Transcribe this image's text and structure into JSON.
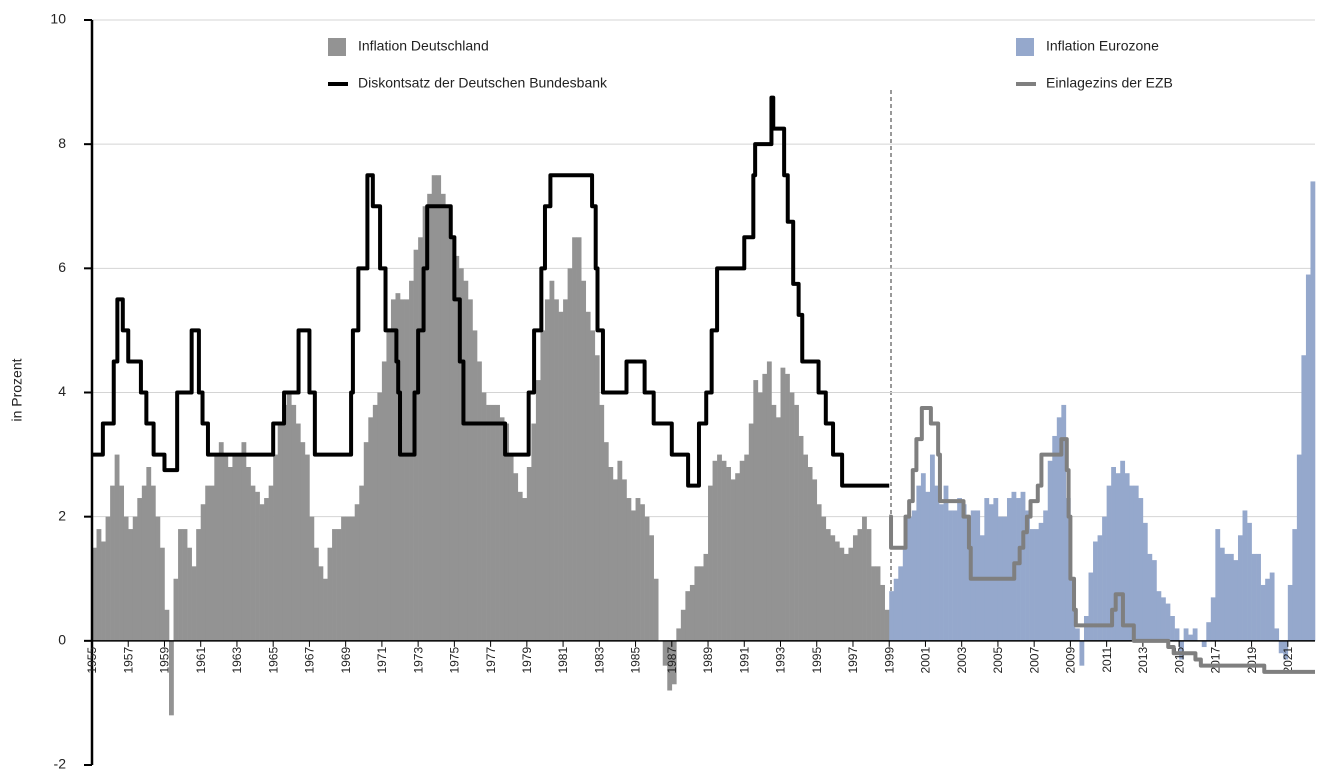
{
  "chart_data": {
    "type": "combo",
    "y_label": "in Prozent",
    "xlim": [
      1955,
      2022.5
    ],
    "xticks": [
      1955,
      1957,
      1959,
      1961,
      1963,
      1965,
      1967,
      1969,
      1971,
      1973,
      1975,
      1977,
      1979,
      1981,
      1983,
      1985,
      1987,
      1989,
      1991,
      1993,
      1995,
      1997,
      1999,
      2001,
      2003,
      2005,
      2007,
      2009,
      2011,
      2013,
      2015,
      2017,
      2019,
      2021
    ],
    "ylim": [
      -2,
      10
    ],
    "yticks": [
      -2,
      0,
      2,
      4,
      6,
      8,
      10
    ],
    "grid": true,
    "series": [
      {
        "name": "Inflation Deutschland",
        "type": "bar",
        "color": "#939393",
        "x": [
          1955,
          1955.25,
          1955.5,
          1955.75,
          1956,
          1956.25,
          1956.5,
          1956.75,
          1957,
          1957.25,
          1957.5,
          1957.75,
          1958,
          1958.25,
          1958.5,
          1958.75,
          1959,
          1959.25,
          1959.5,
          1959.75,
          1960,
          1960.25,
          1960.5,
          1960.75,
          1961,
          1961.25,
          1961.5,
          1961.75,
          1962,
          1962.25,
          1962.5,
          1962.75,
          1963,
          1963.25,
          1963.5,
          1963.75,
          1964,
          1964.25,
          1964.5,
          1964.75,
          1965,
          1965.25,
          1965.5,
          1965.75,
          1966,
          1966.25,
          1966.5,
          1966.75,
          1967,
          1967.25,
          1967.5,
          1967.75,
          1968,
          1968.25,
          1968.5,
          1968.75,
          1969,
          1969.25,
          1969.5,
          1969.75,
          1970,
          1970.25,
          1970.5,
          1970.75,
          1971,
          1971.25,
          1971.5,
          1971.75,
          1972,
          1972.25,
          1972.5,
          1972.75,
          1973,
          1973.25,
          1973.5,
          1973.75,
          1974,
          1974.25,
          1974.5,
          1974.75,
          1975,
          1975.25,
          1975.5,
          1975.75,
          1976,
          1976.25,
          1976.5,
          1976.75,
          1977,
          1977.25,
          1977.5,
          1977.75,
          1978,
          1978.25,
          1978.5,
          1978.75,
          1979,
          1979.25,
          1979.5,
          1979.75,
          1980,
          1980.25,
          1980.5,
          1980.75,
          1981,
          1981.25,
          1981.5,
          1981.75,
          1982,
          1982.25,
          1982.5,
          1982.75,
          1983,
          1983.25,
          1983.5,
          1983.75,
          1984,
          1984.25,
          1984.5,
          1984.75,
          1985,
          1985.25,
          1985.5,
          1985.75,
          1986,
          1986.25,
          1986.5,
          1986.75,
          1987,
          1987.25,
          1987.5,
          1987.75,
          1988,
          1988.25,
          1988.5,
          1988.75,
          1989,
          1989.25,
          1989.5,
          1989.75,
          1990,
          1990.25,
          1990.5,
          1990.75,
          1991,
          1991.25,
          1991.5,
          1991.75,
          1992,
          1992.25,
          1992.5,
          1992.75,
          1993,
          1993.25,
          1993.5,
          1993.75,
          1994,
          1994.25,
          1994.5,
          1994.75,
          1995,
          1995.25,
          1995.5,
          1995.75,
          1996,
          1996.25,
          1996.5,
          1996.75,
          1997,
          1997.25,
          1997.5,
          1997.75,
          1998,
          1998.25,
          1998.5,
          1998.75
        ],
        "values": [
          1.5,
          1.8,
          1.6,
          2.0,
          2.5,
          3.0,
          2.5,
          2.0,
          1.8,
          2.0,
          2.3,
          2.5,
          2.8,
          2.5,
          2.0,
          1.5,
          0.5,
          -1.2,
          1.0,
          1.8,
          1.8,
          1.5,
          1.2,
          1.8,
          2.2,
          2.5,
          2.5,
          3.0,
          3.2,
          3.0,
          2.8,
          3.0,
          3.0,
          3.2,
          2.8,
          2.5,
          2.4,
          2.2,
          2.3,
          2.5,
          3.0,
          3.5,
          3.8,
          4.0,
          3.8,
          3.5,
          3.2,
          3.0,
          2.0,
          1.5,
          1.2,
          1.0,
          1.5,
          1.8,
          1.8,
          2.0,
          2.0,
          2.0,
          2.2,
          2.5,
          3.2,
          3.6,
          3.8,
          4.0,
          4.5,
          5.0,
          5.5,
          5.6,
          5.5,
          5.5,
          5.8,
          6.3,
          6.5,
          7.0,
          7.2,
          7.5,
          7.5,
          7.2,
          7.0,
          6.5,
          6.2,
          6.0,
          5.8,
          5.5,
          5.0,
          4.5,
          4.0,
          3.8,
          3.8,
          3.8,
          3.6,
          3.5,
          3.0,
          2.7,
          2.4,
          2.3,
          2.8,
          3.5,
          4.2,
          5.0,
          5.5,
          5.8,
          5.5,
          5.3,
          5.5,
          6.0,
          6.5,
          6.5,
          5.8,
          5.3,
          5.0,
          4.6,
          3.8,
          3.2,
          2.8,
          2.6,
          2.9,
          2.6,
          2.3,
          2.1,
          2.3,
          2.2,
          2.0,
          1.7,
          1.0,
          0.0,
          -0.4,
          -0.8,
          -0.7,
          0.2,
          0.5,
          0.8,
          0.9,
          1.2,
          1.2,
          1.4,
          2.5,
          2.9,
          3.0,
          2.9,
          2.8,
          2.6,
          2.7,
          2.9,
          3.0,
          3.5,
          4.2,
          4.0,
          4.3,
          4.5,
          3.8,
          3.6,
          4.4,
          4.3,
          4.0,
          3.8,
          3.3,
          3.0,
          2.8,
          2.6,
          2.2,
          2.0,
          1.8,
          1.7,
          1.6,
          1.5,
          1.4,
          1.5,
          1.7,
          1.8,
          2.0,
          1.8,
          1.2,
          1.2,
          0.9,
          0.5
        ]
      },
      {
        "name": "Inflation Eurozone",
        "type": "bar",
        "color": "#95a8cc",
        "x": [
          1999,
          1999.25,
          1999.5,
          1999.75,
          2000,
          2000.25,
          2000.5,
          2000.75,
          2001,
          2001.25,
          2001.5,
          2001.75,
          2002,
          2002.25,
          2002.5,
          2002.75,
          2003,
          2003.25,
          2003.5,
          2003.75,
          2004,
          2004.25,
          2004.5,
          2004.75,
          2005,
          2005.25,
          2005.5,
          2005.75,
          2006,
          2006.25,
          2006.5,
          2006.75,
          2007,
          2007.25,
          2007.5,
          2007.75,
          2008,
          2008.25,
          2008.5,
          2008.75,
          2009,
          2009.25,
          2009.5,
          2009.75,
          2010,
          2010.25,
          2010.5,
          2010.75,
          2011,
          2011.25,
          2011.5,
          2011.75,
          2012,
          2012.25,
          2012.5,
          2012.75,
          2013,
          2013.25,
          2013.5,
          2013.75,
          2014,
          2014.25,
          2014.5,
          2014.75,
          2015,
          2015.25,
          2015.5,
          2015.75,
          2016,
          2016.25,
          2016.5,
          2016.75,
          2017,
          2017.25,
          2017.5,
          2017.75,
          2018,
          2018.25,
          2018.5,
          2018.75,
          2019,
          2019.25,
          2019.5,
          2019.75,
          2020,
          2020.25,
          2020.5,
          2020.75,
          2021,
          2021.25,
          2021.5,
          2021.75,
          2022,
          2022.25
        ],
        "values": [
          0.8,
          1.0,
          1.2,
          1.5,
          2.0,
          2.1,
          2.5,
          2.7,
          2.4,
          3.0,
          2.5,
          2.2,
          2.5,
          2.1,
          2.1,
          2.3,
          2.2,
          2.0,
          2.1,
          2.1,
          1.7,
          2.3,
          2.2,
          2.3,
          2.0,
          2.0,
          2.3,
          2.4,
          2.3,
          2.4,
          2.1,
          1.8,
          1.8,
          1.9,
          2.1,
          2.9,
          3.3,
          3.6,
          3.8,
          2.3,
          1.0,
          0.2,
          -0.4,
          0.4,
          1.1,
          1.6,
          1.7,
          2.0,
          2.5,
          2.8,
          2.7,
          2.9,
          2.7,
          2.5,
          2.5,
          2.3,
          1.9,
          1.4,
          1.3,
          0.8,
          0.7,
          0.6,
          0.4,
          0.2,
          -0.3,
          0.2,
          0.1,
          0.2,
          0.0,
          -0.1,
          0.3,
          0.7,
          1.8,
          1.5,
          1.4,
          1.4,
          1.3,
          1.7,
          2.1,
          1.9,
          1.4,
          1.4,
          0.9,
          1.0,
          1.1,
          0.2,
          -0.2,
          -0.3,
          0.9,
          1.8,
          3.0,
          4.6,
          5.9,
          7.4
        ]
      },
      {
        "name": "Diskontsatz der Deutschen Bundesbank",
        "type": "line",
        "color": "#000000",
        "x": [
          1955,
          1955.6,
          1956.2,
          1956.4,
          1956.7,
          1957,
          1957.7,
          1958,
          1958.4,
          1959,
          1959.7,
          1960.5,
          1960.9,
          1961.1,
          1961.4,
          1965,
          1965.6,
          1966.4,
          1967,
          1967.3,
          1969.3,
          1969.4,
          1969.7,
          1970.2,
          1970.5,
          1970.9,
          1971.2,
          1971.8,
          1971.9,
          1972,
          1972.8,
          1973,
          1973.3,
          1973.5,
          1974.8,
          1975,
          1975.3,
          1975.5,
          1977.8,
          1979.1,
          1979.4,
          1979.8,
          1980,
          1980.3,
          1982.6,
          1982.8,
          1982.9,
          1983.2,
          1984.5,
          1985.5,
          1986,
          1987,
          1987.9,
          1988.5,
          1988.9,
          1989.2,
          1989.5,
          1991,
          1991.5,
          1991.6,
          1992.5,
          1992.6,
          1993.2,
          1993.4,
          1993.7,
          1994,
          1994.2,
          1995.1,
          1995.5,
          1995.9,
          1996.4,
          1999
        ],
        "values": [
          3.0,
          3.5,
          4.5,
          5.5,
          5.0,
          4.5,
          4.0,
          3.5,
          3.0,
          2.75,
          4.0,
          5.0,
          4.0,
          3.5,
          3.0,
          3.5,
          4.0,
          5.0,
          4.0,
          3.0,
          4.0,
          5.0,
          6.0,
          7.5,
          7.0,
          6.0,
          5.0,
          4.5,
          4.0,
          3.0,
          4.0,
          5.0,
          6.0,
          7.0,
          6.5,
          5.5,
          4.5,
          3.5,
          3.0,
          4.0,
          5.0,
          6.0,
          7.0,
          7.5,
          7.0,
          6.0,
          5.0,
          4.0,
          4.5,
          4.0,
          3.5,
          3.0,
          2.5,
          3.5,
          4.0,
          5.0,
          6.0,
          6.5,
          7.5,
          8.0,
          8.75,
          8.25,
          7.5,
          6.75,
          5.75,
          5.25,
          4.5,
          4.0,
          3.5,
          3.0,
          2.5,
          2.5
        ]
      },
      {
        "name": "Einlagezins der EZB",
        "type": "line",
        "color": "#7f7f7f",
        "x": [
          1999,
          1999.1,
          1999.9,
          2000.1,
          2000.3,
          2000.5,
          2000.8,
          2001.3,
          2001.7,
          2001.8,
          2003.1,
          2003.4,
          2003.5,
          2005.9,
          2006.2,
          2006.4,
          2006.6,
          2006.8,
          2007.2,
          2007.4,
          2008.5,
          2008.8,
          2008.9,
          2009,
          2009.2,
          2009.3,
          2011.3,
          2011.5,
          2011.9,
          2012.5,
          2014.4,
          2014.7,
          2015.9,
          2016.2,
          2019.7,
          2022.5
        ],
        "values": [
          2.0,
          1.5,
          2.0,
          2.25,
          2.75,
          3.25,
          3.75,
          3.5,
          3.0,
          2.25,
          2.0,
          1.5,
          1.0,
          1.25,
          1.5,
          1.75,
          2.0,
          2.25,
          2.5,
          3.0,
          3.25,
          2.75,
          2.0,
          1.0,
          0.5,
          0.25,
          0.5,
          0.75,
          0.25,
          0.0,
          -0.1,
          -0.2,
          -0.3,
          -0.4,
          -0.5,
          -0.5
        ]
      }
    ]
  }
}
